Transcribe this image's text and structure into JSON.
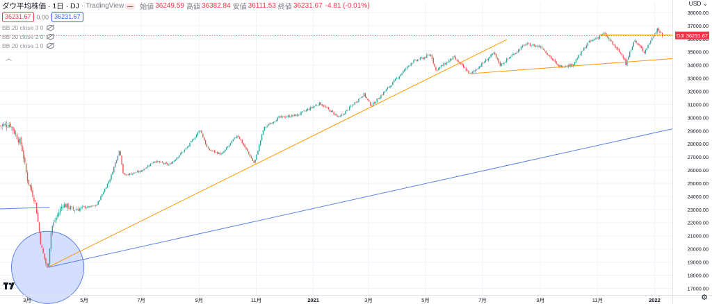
{
  "header": {
    "symbol_line": "ダウ平均株価 · 1日 · DJ",
    "symbol": "ダウ平均株価",
    "interval": "1日",
    "exchange": "DJ",
    "source": "TradingView",
    "open_label": "始値",
    "open": "36249.59",
    "high_label": "高値",
    "high": "36382.84",
    "low_label": "安値",
    "low": "36111.53",
    "close_label": "終値",
    "close": "36231.67",
    "change": "-4.81 (-0.01%)"
  },
  "price_boxes": {
    "bid": "36231.67",
    "spread": "0.00",
    "ask": "36231.67"
  },
  "indicators": [
    "BB 20 close 3 0",
    "BB 20 close 2 0",
    "BB 20 close 1 0"
  ],
  "currency": "USD",
  "price_label": {
    "ticker": "DJI",
    "value": "36231.67"
  },
  "colors": {
    "up": "#26a69a",
    "down": "#ef5350",
    "last": "#f23645",
    "orange": "#ff9800",
    "blue": "#5b7fe8",
    "circle_fill": "#c6d4ff",
    "grid": "#f0f3fa"
  },
  "chart_data": {
    "type": "candlestick",
    "ylim": [
      16500,
      38800
    ],
    "y_ticks": [
      17000,
      18000,
      19000,
      20000,
      21000,
      22000,
      23000,
      24000,
      25000,
      26000,
      27000,
      28000,
      29000,
      30000,
      31000,
      32000,
      33000,
      34000,
      35000,
      36000,
      37000,
      38000
    ],
    "y_tick_labels": [
      "17000.00",
      "18000.00",
      "19000.00",
      "20000.00",
      "21000.00",
      "22000.00",
      "23000.00",
      "24000.00",
      "25000.00",
      "26000.00",
      "27000.00",
      "28000.00",
      "29000.00",
      "30000.00",
      "31000.00",
      "32000.00",
      "33000.00",
      "34000.00",
      "35000.00",
      "36000.00",
      "37000.00",
      "38000.00"
    ],
    "x_range": [
      "2020-02-01",
      "2022-01-20"
    ],
    "x_ticks": [
      {
        "date": "2020-03-01",
        "label": "3月"
      },
      {
        "date": "2020-05-01",
        "label": "5月"
      },
      {
        "date": "2020-07-01",
        "label": "7月"
      },
      {
        "date": "2020-09-01",
        "label": "9月"
      },
      {
        "date": "2020-11-01",
        "label": "11月"
      },
      {
        "date": "2021-01-01",
        "label": "2021"
      },
      {
        "date": "2021-03-01",
        "label": "3月"
      },
      {
        "date": "2021-05-01",
        "label": "5月"
      },
      {
        "date": "2021-07-01",
        "label": "7月"
      },
      {
        "date": "2021-09-01",
        "label": "9月"
      },
      {
        "date": "2021-11-01",
        "label": "11月"
      },
      {
        "date": "2022-01-01",
        "label": "2022"
      }
    ],
    "close_path": [
      [
        "2020-02-01",
        29400
      ],
      [
        "2020-02-12",
        29500
      ],
      [
        "2020-02-24",
        27900
      ],
      [
        "2020-03-01",
        25400
      ],
      [
        "2020-03-10",
        23500
      ],
      [
        "2020-03-16",
        20200
      ],
      [
        "2020-03-23",
        18400
      ],
      [
        "2020-03-27",
        21600
      ],
      [
        "2020-04-08",
        23400
      ],
      [
        "2020-04-20",
        23000
      ],
      [
        "2020-05-14",
        23300
      ],
      [
        "2020-05-29",
        25400
      ],
      [
        "2020-06-08",
        27600
      ],
      [
        "2020-06-12",
        25600
      ],
      [
        "2020-06-30",
        25900
      ],
      [
        "2020-07-15",
        26700
      ],
      [
        "2020-07-31",
        26400
      ],
      [
        "2020-08-20",
        27800
      ],
      [
        "2020-09-02",
        29100
      ],
      [
        "2020-09-10",
        27600
      ],
      [
        "2020-09-25",
        27200
      ],
      [
        "2020-10-12",
        28700
      ],
      [
        "2020-10-30",
        26500
      ],
      [
        "2020-11-09",
        29200
      ],
      [
        "2020-11-25",
        30000
      ],
      [
        "2020-12-15",
        30200
      ],
      [
        "2021-01-08",
        31100
      ],
      [
        "2021-01-29",
        30000
      ],
      [
        "2021-02-24",
        31800
      ],
      [
        "2021-03-04",
        30900
      ],
      [
        "2021-03-25",
        32500
      ],
      [
        "2021-04-16",
        34200
      ],
      [
        "2021-05-07",
        34800
      ],
      [
        "2021-05-12",
        33600
      ],
      [
        "2021-05-31",
        34600
      ],
      [
        "2021-06-18",
        33300
      ],
      [
        "2021-07-13",
        34900
      ],
      [
        "2021-07-20",
        34000
      ],
      [
        "2021-08-16",
        35600
      ],
      [
        "2021-09-02",
        35400
      ],
      [
        "2021-09-20",
        33900
      ],
      [
        "2021-10-05",
        34000
      ],
      [
        "2021-10-22",
        35700
      ],
      [
        "2021-11-08",
        36400
      ],
      [
        "2021-11-30",
        34500
      ],
      [
        "2021-12-01",
        34000
      ],
      [
        "2021-12-10",
        35900
      ],
      [
        "2021-12-21",
        35000
      ],
      [
        "2022-01-04",
        36800
      ],
      [
        "2022-01-10",
        36100
      ]
    ],
    "annotations": {
      "orange_trendline": [
        [
          "2020-03-23",
          18600
        ],
        [
          "2021-07-27",
          35950
        ]
      ],
      "orange_triangle_upper": [
        [
          "2021-11-03",
          36300
        ],
        [
          "2022-01-20",
          36300
        ]
      ],
      "orange_triangle_lower": [
        [
          "2021-06-18",
          33350
        ],
        [
          "2022-01-20",
          34500
        ]
      ],
      "blue_trendline": [
        [
          "2020-03-23",
          18600
        ],
        [
          "2022-01-20",
          29150
        ]
      ],
      "blue_line_top": [
        [
          "2020-02-01",
          23050
        ],
        [
          "2020-03-25",
          23180
        ]
      ],
      "circle_center": [
        "2020-03-23",
        18600
      ],
      "circle_edge": [
        "2020-04-20",
        20500
      ],
      "dashed_last_price": 36231.67
    }
  }
}
